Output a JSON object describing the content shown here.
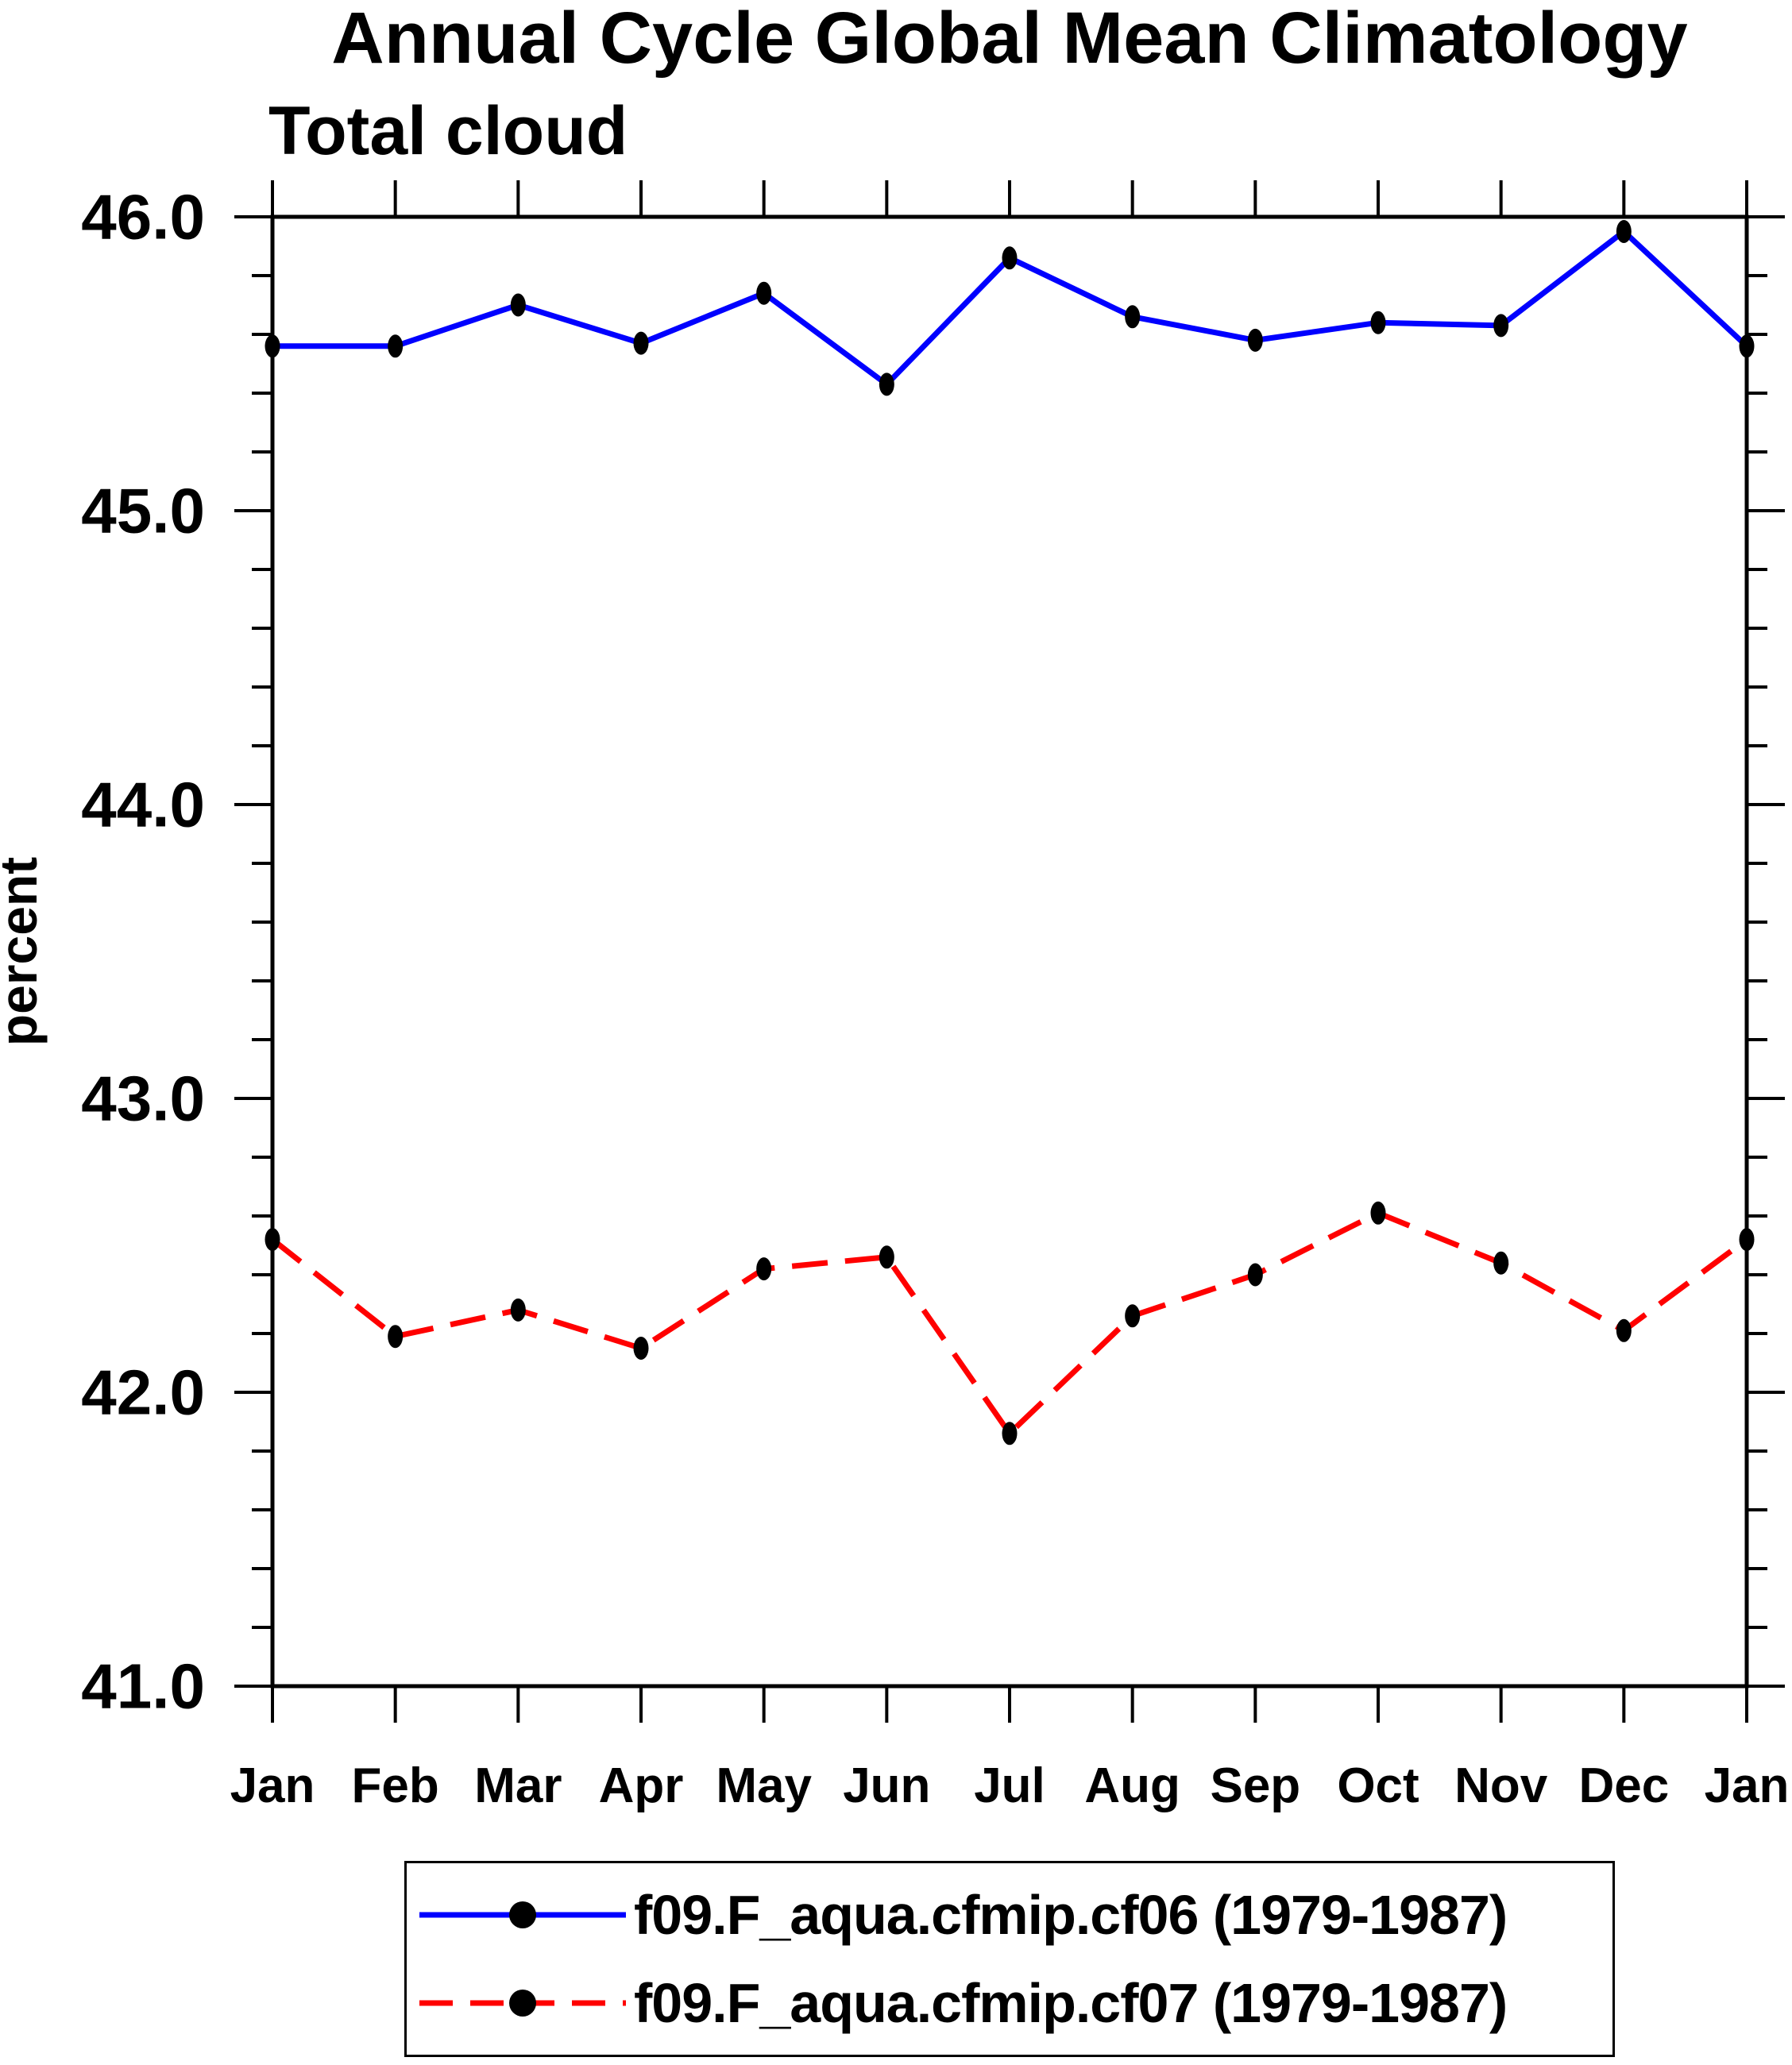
{
  "title": "Annual Cycle Global Mean Climatology",
  "subtitle": "Total cloud",
  "ylabel": "percent",
  "colors": {
    "series1": "#0000ff",
    "series2": "#ff0000",
    "axis": "#000000",
    "marker": "#000000"
  },
  "legend": {
    "items": [
      {
        "label": "f09.F_aqua.cfmip.cf06 (1979-1987)",
        "color": "#0000ff",
        "style": "solid"
      },
      {
        "label": "f09.F_aqua.cfmip.cf07 (1979-1987)",
        "color": "#ff0000",
        "style": "dashed"
      }
    ]
  },
  "chart_data": {
    "type": "line",
    "title": "Annual Cycle Global Mean Climatology",
    "subtitle": "Total cloud",
    "xlabel": "",
    "ylabel": "percent",
    "categories": [
      "Jan",
      "Feb",
      "Mar",
      "Apr",
      "May",
      "Jun",
      "Jul",
      "Aug",
      "Sep",
      "Oct",
      "Nov",
      "Dec",
      "Jan"
    ],
    "series": [
      {
        "name": "f09.F_aqua.cfmip.cf06 (1979-1987)",
        "color": "#0000ff",
        "line_style": "solid",
        "marker": "filled-circle",
        "values": [
          45.56,
          45.56,
          45.7,
          45.57,
          45.74,
          45.43,
          45.86,
          45.66,
          45.58,
          45.64,
          45.63,
          45.95,
          45.56
        ]
      },
      {
        "name": "f09.F_aqua.cfmip.cf07 (1979-1987)",
        "color": "#ff0000",
        "line_style": "dashed",
        "marker": "filled-circle",
        "values": [
          42.52,
          42.19,
          42.28,
          42.15,
          42.42,
          42.46,
          41.86,
          42.26,
          42.4,
          42.61,
          42.44,
          42.21,
          42.52
        ]
      }
    ],
    "ylim": [
      41.0,
      46.0
    ],
    "yticks_major": [
      41.0,
      42.0,
      43.0,
      44.0,
      45.0,
      46.0
    ],
    "ytick_labels": [
      "41.0",
      "42.0",
      "43.0",
      "44.0",
      "45.0",
      "46.0"
    ],
    "ytick_minor_step": 0.2,
    "grid": false,
    "frame": "box-outward-ticks",
    "legend_position": "bottom"
  }
}
